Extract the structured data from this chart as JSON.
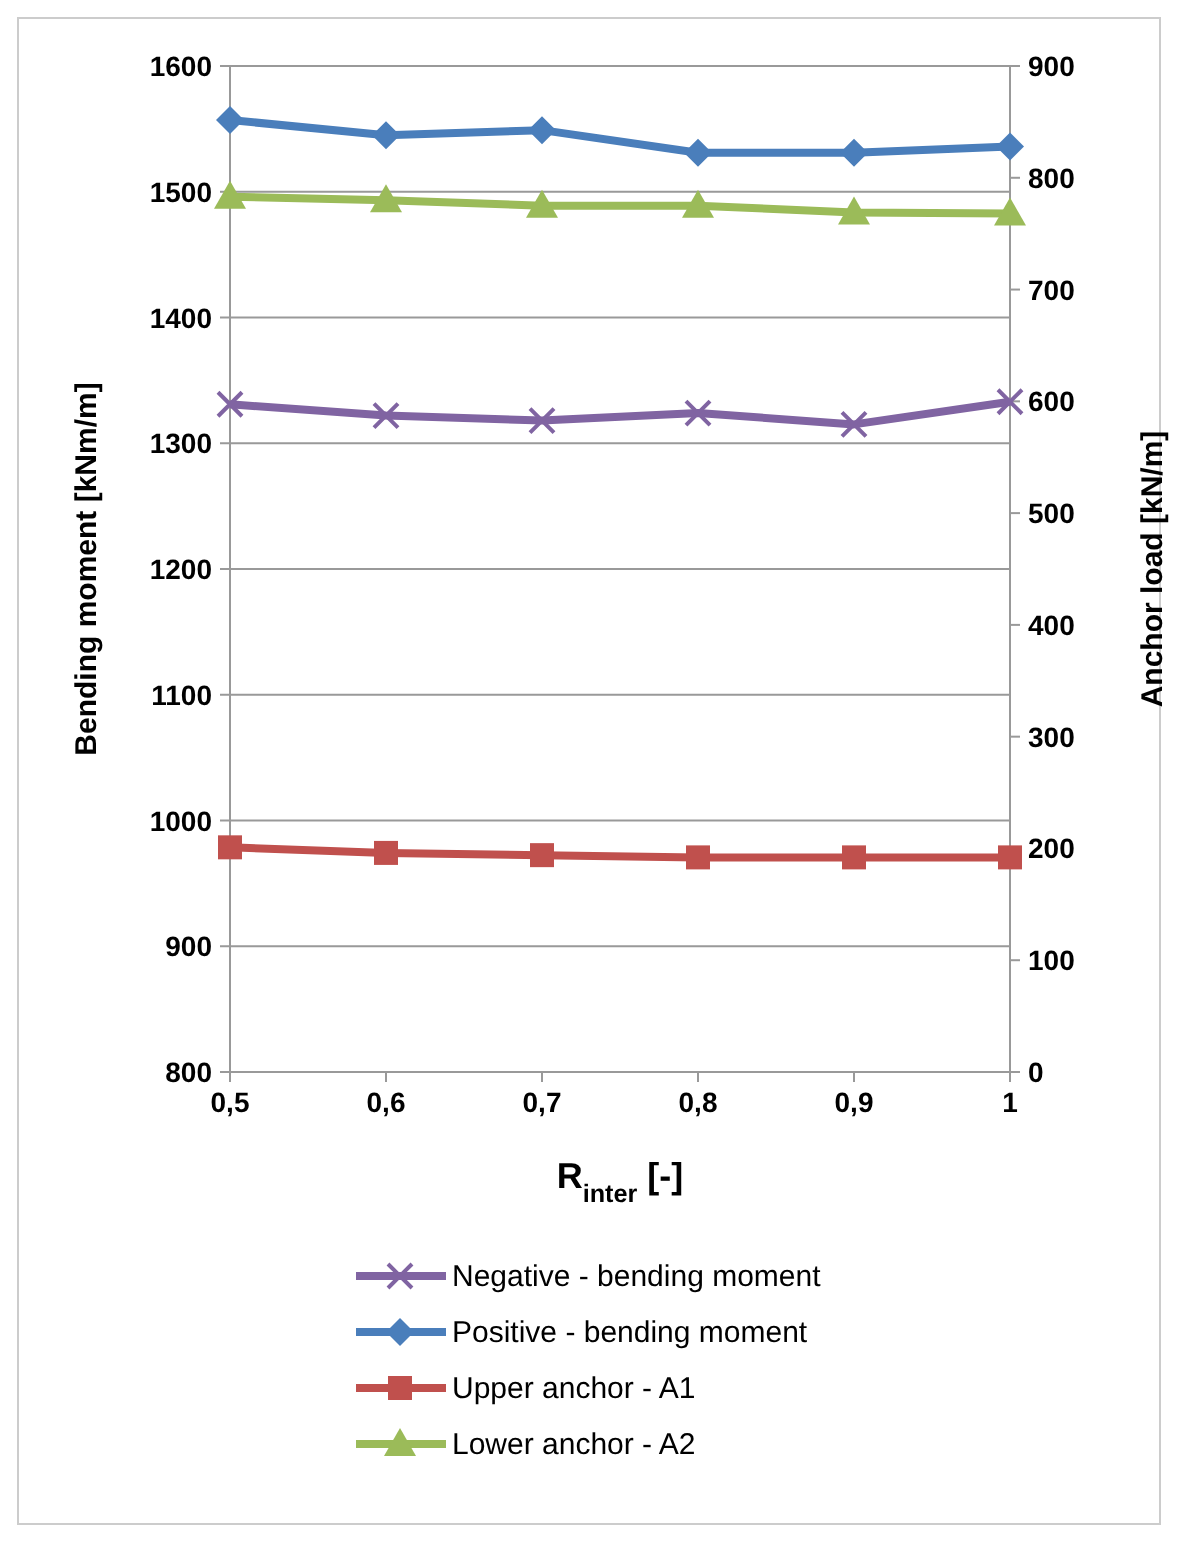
{
  "chart_data": {
    "type": "line",
    "xlabel": "R$_{inter}$ [-]",
    "ylabel": "Bending moment [kNm/m]",
    "y2label": "Anchor load [kN/m]",
    "x": [
      0.5,
      0.6,
      0.7,
      0.8,
      0.9,
      1
    ],
    "xlim": [
      0.5,
      1
    ],
    "xticks": [
      {
        "value": 0.5,
        "label": "0,5"
      },
      {
        "value": 0.6,
        "label": "0,6"
      },
      {
        "value": 0.7,
        "label": "0,7"
      },
      {
        "value": 0.8,
        "label": "0,8"
      },
      {
        "value": 0.9,
        "label": "0,9"
      },
      {
        "value": 1,
        "label": "1"
      }
    ],
    "ylim": [
      800,
      1600
    ],
    "yticks": [
      800,
      900,
      1000,
      1100,
      1200,
      1300,
      1400,
      1500,
      1600
    ],
    "y2lim": [
      0,
      900
    ],
    "y2ticks": [
      0,
      100,
      200,
      300,
      400,
      500,
      600,
      700,
      800,
      900
    ],
    "grid": "y",
    "legend": "bottom",
    "series": [
      {
        "name": "Negative - bending moment",
        "color": "#8064a2",
        "marker": "cross",
        "values": [
          1331,
          1322,
          1318,
          1324,
          1315,
          1333
        ]
      },
      {
        "name": "Positive - bending moment",
        "color": "#4a7ebb",
        "marker": "diamond",
        "values": [
          1557,
          1545,
          1549,
          1531,
          1531,
          1536
        ]
      },
      {
        "name": "Upper anchor - A1",
        "color": "#c0504d",
        "marker": "square",
        "axis": "y2",
        "values": [
          201,
          196,
          194,
          192,
          192,
          192
        ]
      },
      {
        "name": "Lower anchor - A2",
        "color": "#9bbb59",
        "marker": "triangle",
        "axis": "y2",
        "values": [
          783,
          780,
          775,
          775,
          769,
          768
        ]
      }
    ]
  }
}
